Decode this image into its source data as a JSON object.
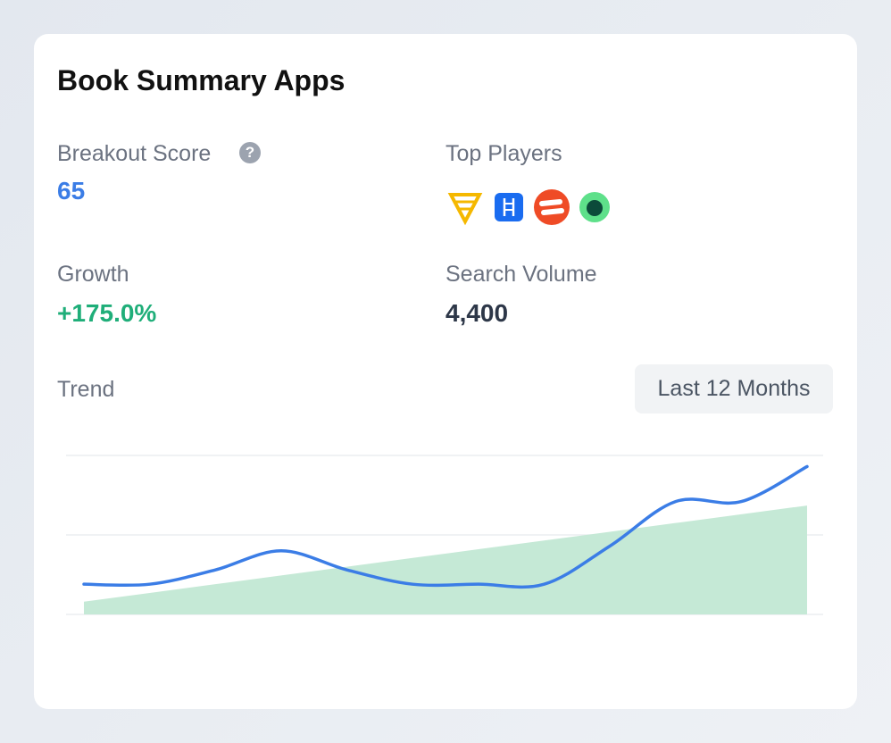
{
  "title": "Book Summary Apps",
  "metrics": [
    {
      "label": "Breakout Score",
      "value": "65"
    },
    {
      "label": "Top Players"
    },
    {
      "label": "Growth",
      "value": "+175.0%"
    },
    {
      "label": "Search Volume",
      "value": "4,400"
    }
  ],
  "trend": {
    "label": "Trend",
    "range_button": "Last 12 Months"
  },
  "chart_data": {
    "type": "line",
    "values": [
      19,
      19,
      28,
      40,
      28,
      19,
      19,
      19,
      43,
      71,
      71,
      93
    ],
    "area_values": [
      8,
      13.5,
      19,
      24.5,
      30,
      35.5,
      41,
      46.5,
      52,
      57.5,
      63,
      68.5
    ],
    "color": "#3b7de6",
    "area_color": "#c5e9d6",
    "ylim": [
      0,
      100
    ],
    "yticks": [
      0,
      50,
      100
    ],
    "grid": true
  }
}
